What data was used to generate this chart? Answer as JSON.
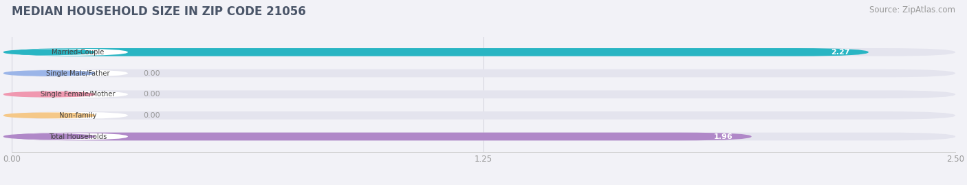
{
  "title": "MEDIAN HOUSEHOLD SIZE IN ZIP CODE 21056",
  "source": "Source: ZipAtlas.com",
  "categories": [
    "Married-Couple",
    "Single Male/Father",
    "Single Female/Mother",
    "Non-family",
    "Total Households"
  ],
  "values": [
    2.27,
    0.0,
    0.0,
    0.0,
    1.96
  ],
  "bar_colors": [
    "#29b5c3",
    "#9bb5e8",
    "#f098b0",
    "#f5c888",
    "#b088c8"
  ],
  "xlim": [
    0,
    2.5
  ],
  "xticks": [
    0.0,
    1.25,
    2.5
  ],
  "xtick_labels": [
    "0.00",
    "1.25",
    "2.50"
  ],
  "background_color": "#f2f2f7",
  "bar_bg_color": "#e4e4ee",
  "title_fontsize": 12,
  "source_fontsize": 8.5,
  "bar_height": 0.38,
  "rounding": 0.19
}
